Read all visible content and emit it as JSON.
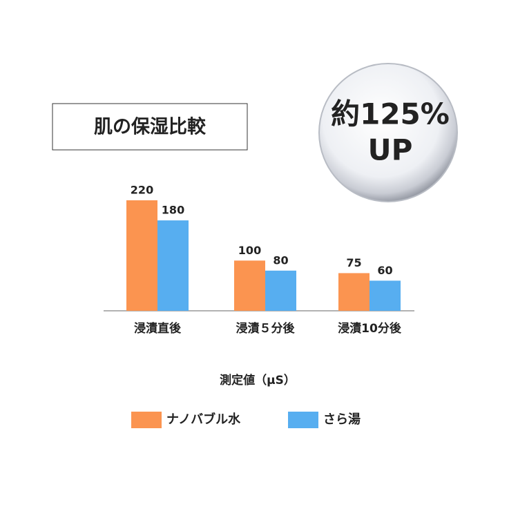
{
  "chart_data": {
    "type": "bar",
    "title": "肌の保湿比較",
    "annotations": [
      "約125%",
      "UP"
    ],
    "categories": [
      "浸漬直後",
      "浸漬５分後",
      "浸漬10分後"
    ],
    "series": [
      {
        "name": "ナノバブル水",
        "color": "#fb9450",
        "values": [
          220,
          100,
          75
        ]
      },
      {
        "name": "さら湯",
        "color": "#57aef0",
        "values": [
          180,
          80,
          60
        ]
      }
    ],
    "xlabel": "測定値（μS）",
    "ylim": [
      0,
      220
    ]
  }
}
